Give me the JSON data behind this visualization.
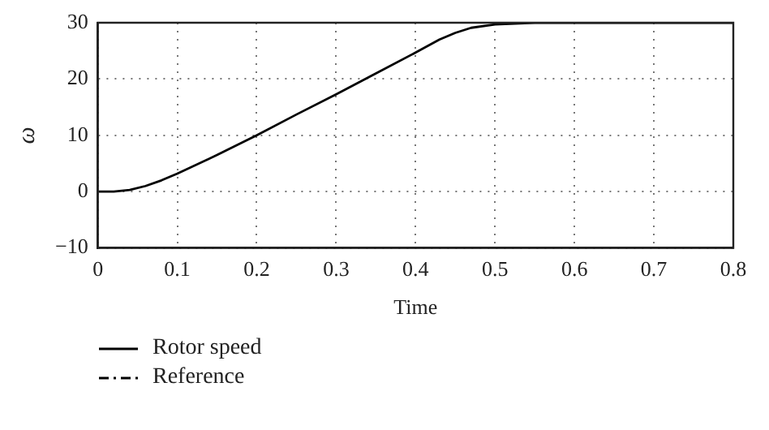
{
  "chart_data": {
    "type": "line",
    "xlabel": "Time",
    "ylabel": "ω",
    "xlim": [
      0,
      0.8
    ],
    "xticks": [
      0,
      0.1,
      0.2,
      0.3,
      0.4,
      0.5,
      0.6,
      0.7,
      0.8
    ],
    "ylim": [
      -10,
      30
    ],
    "yticks": [
      -10,
      0,
      10,
      20,
      30
    ],
    "grid": true,
    "legend": "bottom",
    "marker": "none",
    "series": [
      {
        "name": "Rotor speed",
        "color": "#000000",
        "line_style": "solid",
        "x": [
          0,
          0.02,
          0.04,
          0.06,
          0.08,
          0.1,
          0.15,
          0.2,
          0.25,
          0.3,
          0.35,
          0.4,
          0.43,
          0.45,
          0.47,
          0.5,
          0.55,
          0.6,
          0.7,
          0.8
        ],
        "values": [
          0,
          0,
          0.3,
          1,
          2,
          3.2,
          6.5,
          10,
          13.7,
          17.3,
          21,
          24.7,
          27,
          28.2,
          29.1,
          29.7,
          30,
          30,
          30,
          30
        ]
      },
      {
        "name": "Reference",
        "color": "#000000",
        "line_style": "dashed"
      }
    ]
  }
}
